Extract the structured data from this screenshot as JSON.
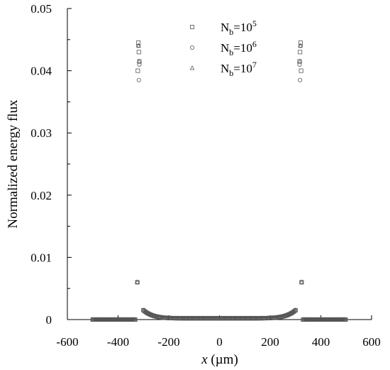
{
  "chart_data": {
    "type": "scatter",
    "title": "",
    "xlabel": "x (µm)",
    "xlabel_parts": {
      "var": "x",
      "unit": " (µm)"
    },
    "ylabel": "Normalized energy flux",
    "xlim": [
      -600,
      600
    ],
    "ylim": [
      0,
      0.05
    ],
    "xticks": [
      -600,
      -400,
      -200,
      0,
      200,
      400,
      600
    ],
    "xtick_labels": [
      "-600",
      "-400",
      "-200",
      "0",
      "200",
      "400",
      "600"
    ],
    "yticks": [
      0,
      0.01,
      0.02,
      0.03,
      0.04,
      0.05
    ],
    "ytick_labels": [
      "0",
      "0.01",
      "0.02",
      "0.03",
      "0.04",
      "0.05"
    ],
    "grid": false,
    "legend_position": "top-center",
    "marker_color": "#555555",
    "series": [
      {
        "name": "Nb=10^5",
        "legend": {
          "base": "N",
          "sub": "b",
          "mid": "=10",
          "sup": "5"
        },
        "marker": "square",
        "peaks": {
          "left": [
            [
              -320,
              0.0445
            ],
            [
              -318,
              0.043
            ],
            [
              -316,
              0.0415
            ],
            [
              -322,
              0.04
            ],
            [
              -324,
              0.006
            ]
          ],
          "right": [
            [
              320,
              0.0445
            ],
            [
              318,
              0.043
            ],
            [
              316,
              0.0415
            ],
            [
              322,
              0.04
            ],
            [
              324,
              0.006
            ]
          ]
        }
      },
      {
        "name": "Nb=10^6",
        "legend": {
          "base": "N",
          "sub": "b",
          "mid": "=10",
          "sup": "6"
        },
        "marker": "circle",
        "peaks": {
          "left": [
            [
              -320,
              0.044
            ],
            [
              -318,
              0.0385
            ],
            [
              -316,
              0.041
            ],
            [
              -324,
              0.006
            ]
          ],
          "right": [
            [
              320,
              0.044
            ],
            [
              318,
              0.0385
            ],
            [
              316,
              0.041
            ],
            [
              324,
              0.006
            ]
          ]
        }
      },
      {
        "name": "Nb=10^7",
        "legend": {
          "base": "N",
          "sub": "b",
          "mid": "=10",
          "sup": "7"
        },
        "marker": "triangle",
        "peaks": {
          "left": [
            [
              -319,
              0.044
            ],
            [
              -317,
              0.0415
            ],
            [
              -324,
              0.006
            ]
          ],
          "right": [
            [
              319,
              0.044
            ],
            [
              317,
              0.0415
            ],
            [
              324,
              0.006
            ]
          ]
        }
      }
    ],
    "baseline": {
      "outer_flat": {
        "ranges": [
          [
            -500,
            -330
          ],
          [
            330,
            500
          ]
        ],
        "y": 0.0
      },
      "inner_curve": {
        "range": [
          -300,
          300
        ],
        "edge_value": 0.0015,
        "center_value": 0.0002
      }
    }
  }
}
